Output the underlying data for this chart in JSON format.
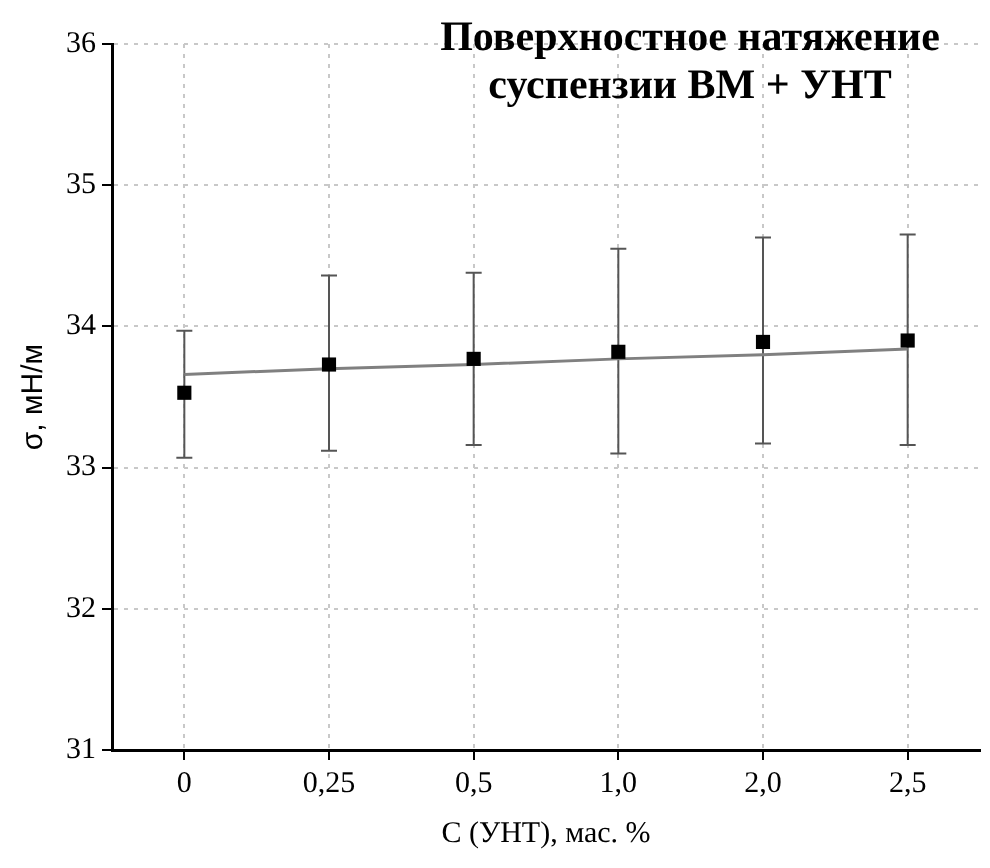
{
  "chart_data": {
    "type": "scatter",
    "title": "Поверхностное натяжение суспензии ВМ + УНТ",
    "xlabel": "С (УНТ), мас. %",
    "ylabel": "σ, мН/м",
    "categories": [
      "0",
      "0,25",
      "0,5",
      "1,0",
      "2,0",
      "2,5"
    ],
    "series": [
      {
        "type": "scatter",
        "color": "#000000",
        "marker": "square",
        "values": [
          33.53,
          33.73,
          33.77,
          33.82,
          33.89,
          33.9
        ],
        "errors": [
          [
            33.07,
            33.97
          ],
          [
            33.12,
            34.36
          ],
          [
            33.16,
            34.38
          ],
          [
            33.1,
            34.55
          ],
          [
            33.17,
            34.63
          ],
          [
            33.16,
            34.65
          ]
        ]
      },
      {
        "type": "line",
        "color": "#808080",
        "marker": "none",
        "line_style": "solid",
        "values": [
          33.66,
          33.7,
          33.73,
          33.77,
          33.8,
          33.84
        ]
      }
    ],
    "ylim": [
      31,
      36
    ],
    "yticks": [
      31,
      32,
      33,
      34,
      35,
      36
    ],
    "grid": true,
    "legend": false
  }
}
